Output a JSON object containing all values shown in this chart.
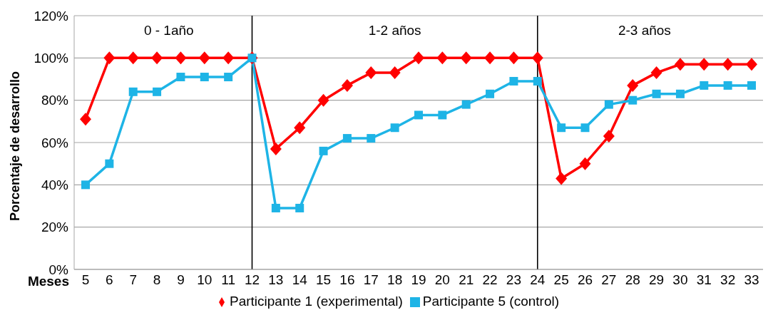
{
  "chart_data": {
    "type": "line",
    "xlabel": "Meses",
    "ylabel": "Porcentaje de desarrollo",
    "categories": [
      "5",
      "6",
      "7",
      "8",
      "9",
      "10",
      "11",
      "12",
      "13",
      "14",
      "15",
      "16",
      "17",
      "18",
      "19",
      "20",
      "21",
      "22",
      "23",
      "24",
      "25",
      "26",
      "27",
      "28",
      "29",
      "30",
      "31",
      "32",
      "33"
    ],
    "series": [
      {
        "name": "Participante 1 (experimental)",
        "color": "#ff0000",
        "marker": "diamond",
        "values": [
          71,
          100,
          100,
          100,
          100,
          100,
          100,
          100,
          57,
          67,
          80,
          87,
          93,
          93,
          100,
          100,
          100,
          100,
          100,
          100,
          43,
          50,
          63,
          87,
          93,
          97,
          97,
          97,
          97
        ]
      },
      {
        "name": "Participante 5 (control)",
        "color": "#1eb4e6",
        "marker": "square",
        "values": [
          40,
          50,
          84,
          84,
          91,
          91,
          91,
          100,
          29,
          29,
          56,
          62,
          62,
          67,
          73,
          73,
          78,
          83,
          89,
          89,
          67,
          67,
          78,
          80,
          83,
          83,
          87,
          87,
          87
        ]
      }
    ],
    "ylim": [
      0,
      120
    ],
    "yticks": [
      {
        "value": 0,
        "label": "0%"
      },
      {
        "value": 20,
        "label": "20%"
      },
      {
        "value": 40,
        "label": "40%"
      },
      {
        "value": 60,
        "label": "60%"
      },
      {
        "value": 80,
        "label": "80%"
      },
      {
        "value": 100,
        "label": "100%"
      },
      {
        "value": 120,
        "label": "120%"
      }
    ],
    "ref_lines": [
      {
        "axis": "x",
        "value": "12",
        "color": "#000000"
      },
      {
        "axis": "x",
        "value": "24",
        "color": "#000000"
      }
    ],
    "annotations": [
      "0 - 1año",
      "1-2 años",
      "2-3 años"
    ],
    "grid": "y",
    "legend": "bottom",
    "line_style": "solid"
  }
}
